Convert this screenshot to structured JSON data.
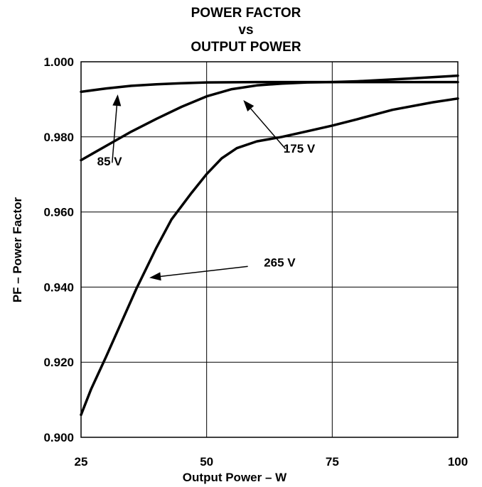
{
  "chart_data": {
    "type": "line",
    "title_lines": [
      "POWER FACTOR",
      "vs",
      "OUTPUT POWER"
    ],
    "xlabel": "Output Power – W",
    "ylabel": "PF – Power Factor",
    "xlim": [
      25,
      100
    ],
    "ylim": [
      0.9,
      1.0
    ],
    "x_ticks": [
      25,
      50,
      75,
      100
    ],
    "x_tick_labels": [
      "25",
      "50",
      "75",
      "100"
    ],
    "y_ticks": [
      0.9,
      0.92,
      0.94,
      0.96,
      0.98,
      1.0
    ],
    "y_tick_labels": [
      "0.900",
      "0.920",
      "0.940",
      "0.960",
      "0.980",
      "1.000"
    ],
    "grid": true,
    "series": [
      {
        "name": "85 V",
        "x": [
          25,
          30,
          35,
          40,
          45,
          50,
          60,
          70,
          75,
          80,
          90,
          100
        ],
        "y": [
          0.992,
          0.9929,
          0.9936,
          0.994,
          0.9943,
          0.9945,
          0.9946,
          0.9946,
          0.9946,
          0.9946,
          0.9946,
          0.9946
        ]
      },
      {
        "name": "175 V",
        "x": [
          25,
          30,
          35,
          40,
          45,
          50,
          55,
          60,
          65,
          70,
          75,
          80,
          90,
          100
        ],
        "y": [
          0.9738,
          0.9776,
          0.9814,
          0.9848,
          0.988,
          0.9908,
          0.9927,
          0.9937,
          0.9942,
          0.9945,
          0.9946,
          0.9948,
          0.9955,
          0.9963
        ]
      },
      {
        "name": "265 V",
        "x": [
          25,
          27,
          30,
          33,
          36,
          40,
          43,
          47,
          50,
          53,
          56,
          60,
          65,
          70,
          75,
          80,
          87,
          95,
          100
        ],
        "y": [
          0.906,
          0.9128,
          0.9215,
          0.9305,
          0.9395,
          0.9505,
          0.958,
          0.9651,
          0.9701,
          0.9743,
          0.977,
          0.9788,
          0.98,
          0.9815,
          0.983,
          0.9847,
          0.9872,
          0.9892,
          0.9902
        ]
      }
    ],
    "annotations": [
      {
        "text": "85 V",
        "label_at": [
          28.2,
          0.9724
        ],
        "tail": [
          31.2,
          0.9731
        ],
        "head": [
          32.3,
          0.9913
        ]
      },
      {
        "text": "175 V",
        "label_at": [
          65.3,
          0.9758
        ],
        "tail": [
          65.7,
          0.9768
        ],
        "head": [
          57.3,
          0.9898
        ]
      },
      {
        "text": "265 V",
        "label_at": [
          61.4,
          0.9455
        ],
        "tail": [
          58.2,
          0.9455
        ],
        "head": [
          38.6,
          0.9425
        ]
      }
    ]
  }
}
